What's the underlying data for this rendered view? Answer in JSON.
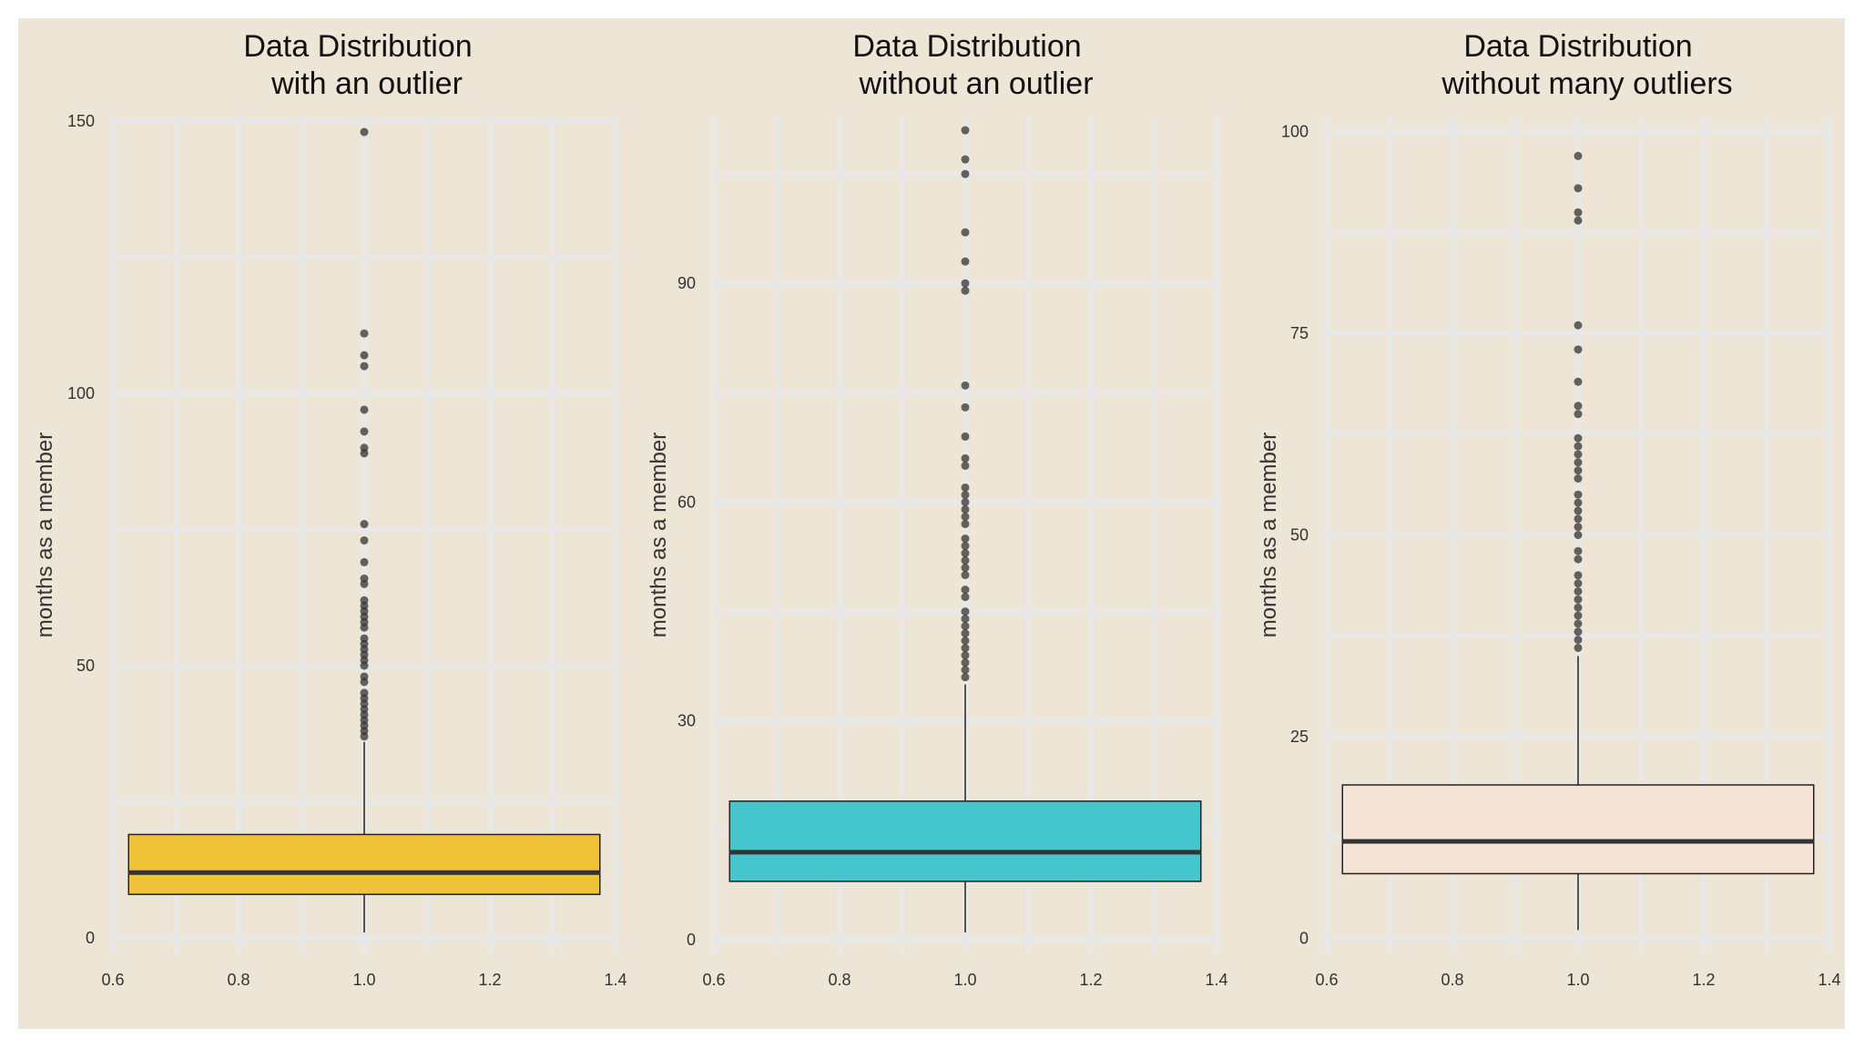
{
  "colors": {
    "background": "#ede5d5",
    "grid": "#e8e8e8",
    "median": "#333333",
    "outlier": "#333333",
    "whisker": "#222222"
  },
  "chart_data": [
    {
      "type": "boxplot",
      "title_line1": "Data Distribution",
      "title_line2": "with an outlier",
      "xlabel": "",
      "ylabel": "months as a member",
      "xlim": [
        0.6,
        1.4
      ],
      "x_ticks": [
        "0.6",
        "0.8",
        "1.0",
        "1.2",
        "1.4"
      ],
      "x_tick_values": [
        0.6,
        0.8,
        1.0,
        1.2,
        1.4
      ],
      "ylim": [
        -3,
        151
      ],
      "y_ticks": [
        "0",
        "50",
        "100",
        "150"
      ],
      "y_tick_values": [
        0,
        50,
        100,
        150
      ],
      "y_minor_values": [
        25,
        75,
        125
      ],
      "grid": true,
      "fill": "#efc02e",
      "box": {
        "x_left": 0.625,
        "x_right": 1.375,
        "x_center": 1.0,
        "q1": 8,
        "median": 12,
        "q3": 19,
        "whisker_low": 1,
        "whisker_high": 36
      },
      "outliers": [
        37,
        38,
        39,
        40,
        41,
        42,
        43,
        44,
        45,
        47,
        48,
        50,
        51,
        52,
        53,
        54,
        55,
        57,
        58,
        59,
        60,
        61,
        62,
        65,
        66,
        69,
        73,
        76,
        89,
        90,
        93,
        97,
        105,
        107,
        111,
        148
      ]
    },
    {
      "type": "boxplot",
      "title_line1": "Data Distribution",
      "title_line2": "without an outlier",
      "xlabel": "",
      "ylabel": "months as a member",
      "xlim": [
        0.6,
        1.4
      ],
      "x_ticks": [
        "0.6",
        "0.8",
        "1.0",
        "1.2",
        "1.4"
      ],
      "x_tick_values": [
        0.6,
        0.8,
        1.0,
        1.2,
        1.4
      ],
      "ylim": [
        -2,
        113
      ],
      "y_ticks": [
        "0",
        "30",
        "60",
        "90"
      ],
      "y_tick_values": [
        0,
        30,
        60,
        90
      ],
      "y_minor_values": [
        15,
        45,
        75,
        105
      ],
      "grid": true,
      "fill": "#3cc4cc",
      "box": {
        "x_left": 0.625,
        "x_right": 1.375,
        "x_center": 1.0,
        "q1": 8,
        "median": 12,
        "q3": 19,
        "whisker_low": 1,
        "whisker_high": 35
      },
      "outliers": [
        36,
        37,
        38,
        39,
        40,
        41,
        42,
        43,
        44,
        45,
        47,
        48,
        50,
        51,
        52,
        53,
        54,
        55,
        57,
        58,
        59,
        60,
        61,
        62,
        65,
        66,
        69,
        73,
        76,
        89,
        90,
        93,
        97,
        105,
        107,
        111
      ]
    },
    {
      "type": "boxplot",
      "title_line1": "Data Distribution",
      "title_line2": "without many outliers",
      "xlabel": "",
      "ylabel": "months as a member",
      "xlim": [
        0.6,
        1.4
      ],
      "x_ticks": [
        "0.6",
        "0.8",
        "1.0",
        "1.2",
        "1.4"
      ],
      "x_tick_values": [
        0.6,
        0.8,
        1.0,
        1.2,
        1.4
      ],
      "ylim": [
        -2,
        102
      ],
      "y_ticks": [
        "0",
        "25",
        "50",
        "75",
        "100"
      ],
      "y_tick_values": [
        0,
        25,
        50,
        75,
        100
      ],
      "y_minor_values": [
        12.5,
        37.5,
        62.5,
        87.5
      ],
      "grid": true,
      "fill": "#f5e4d5",
      "box": {
        "x_left": 0.625,
        "x_right": 1.375,
        "x_center": 1.0,
        "q1": 8,
        "median": 12,
        "q3": 19,
        "whisker_low": 1,
        "whisker_high": 35
      },
      "outliers": [
        36,
        37,
        38,
        39,
        40,
        41,
        42,
        43,
        44,
        45,
        47,
        48,
        50,
        51,
        52,
        53,
        54,
        55,
        57,
        58,
        59,
        60,
        61,
        62,
        65,
        66,
        69,
        73,
        76,
        89,
        90,
        93,
        97
      ]
    }
  ]
}
